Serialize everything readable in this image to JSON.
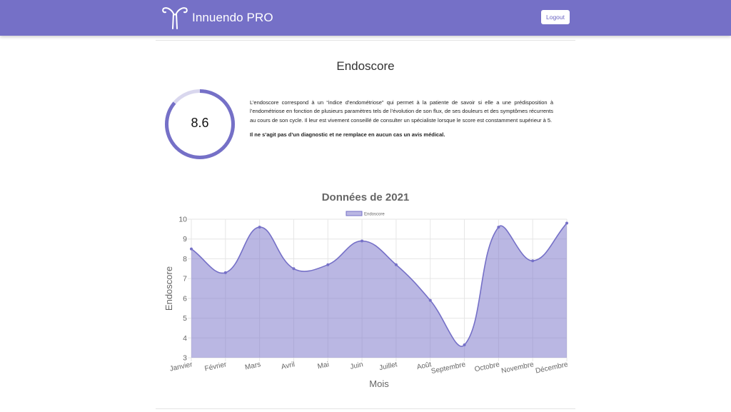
{
  "app": {
    "name": "Innuendo PRO",
    "logout_label": "Logout"
  },
  "page": {
    "title": "Endoscore"
  },
  "score": {
    "value": "8.6",
    "fraction": 0.86
  },
  "description": {
    "text": "L’endoscore correspond à un “indice d’endométriose” qui permet à la patiente de savoir si elle a une prédisposition à l’endométriose en fonction de plusieurs paramètres tels de l’évolution de son flux, de ses douleurs et des symptômes récurrents au cours de son cycle. Il leur est vivement conseillé de consulter un spécialiste lorsque le score est constamment supérieur à 5.",
    "note": "Il ne s’agit pas d’un diagnostic et ne remplace en aucun cas un avis médical."
  },
  "colors": {
    "accent": "#7570c7",
    "fill": "rgba(117,112,199,0.5)",
    "track": "#d9d7ee"
  },
  "chart_data": {
    "type": "area",
    "title": "Données de 2021",
    "xlabel": "Mois",
    "ylabel": "Endoscore",
    "categories": [
      "Janvier",
      "Février",
      "Mars",
      "Avril",
      "Mai",
      "Juin",
      "Juillet",
      "Août",
      "Septembre",
      "Octobre",
      "Novembre",
      "Décembre"
    ],
    "series": [
      {
        "name": "Endoscore",
        "values": [
          8.5,
          7.3,
          9.6,
          7.5,
          7.7,
          8.9,
          7.7,
          5.9,
          3.65,
          9.6,
          7.9,
          9.8
        ]
      }
    ],
    "ylim": [
      3,
      10
    ],
    "yticks": [
      3,
      4,
      5,
      6,
      7,
      8,
      9,
      10
    ],
    "grid": true,
    "legend_position": "top"
  }
}
